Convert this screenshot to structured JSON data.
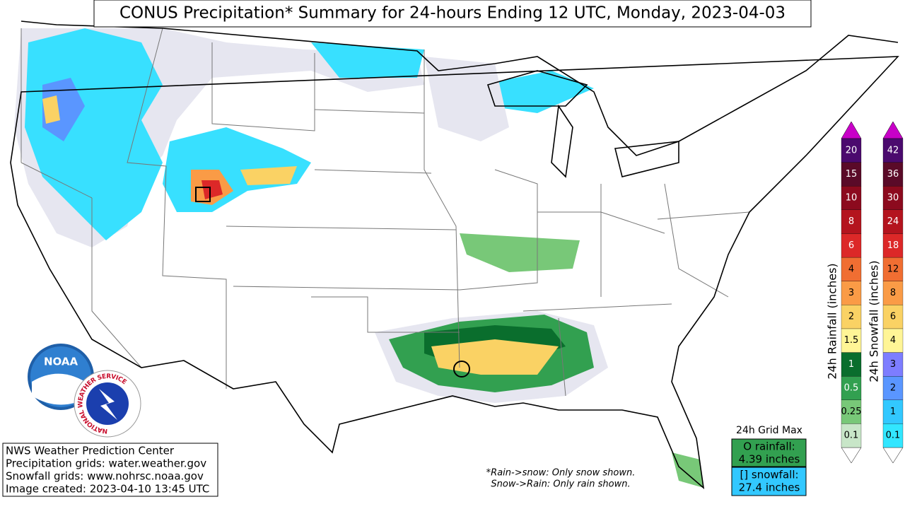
{
  "title": "CONUS Precipitation* Summary for 24-hours Ending 12 UTC, Monday, 2023-04-03",
  "info_box": {
    "lines": [
      "NWS Weather Prediction Center",
      "Precipitation grids: water.weather.gov",
      "Snowfall grids: www.nohrsc.noaa.gov",
      "Image created: 2023-04-10 13:45 UTC"
    ]
  },
  "footnote": {
    "lines": [
      "*Rain->snow: Only snow shown.",
      "Snow->Rain: Only rain shown."
    ]
  },
  "grid_max": {
    "heading": "24h Grid Max",
    "rainfall": [
      "O rainfall:",
      "4.39 inches"
    ],
    "snowfall": [
      "[] snowfall:",
      "27.4 inches"
    ]
  },
  "logos": {
    "noaa": "NOAA",
    "nws": "NATIONAL WEATHER SERVICE"
  },
  "legends": [
    {
      "label": "24h Rainfall (inches)",
      "levels": [
        {
          "value": 0.1,
          "color": "#c8e6c8"
        },
        {
          "value": 0.25,
          "color": "#78c878"
        },
        {
          "value": 0.5,
          "color": "#32a050"
        },
        {
          "value": 1,
          "color": "#0a6e2d"
        },
        {
          "value": 1.5,
          "color": "#fff596"
        },
        {
          "value": 2,
          "color": "#fad264"
        },
        {
          "value": 3,
          "color": "#fa9b46"
        },
        {
          "value": 4,
          "color": "#f06e32"
        },
        {
          "value": 6,
          "color": "#dc2828"
        },
        {
          "value": 8,
          "color": "#b4141e"
        },
        {
          "value": 10,
          "color": "#8c0a1e"
        },
        {
          "value": 15,
          "color": "#5a0a28"
        },
        {
          "value": 20,
          "color": "#4b0a6e"
        }
      ]
    },
    {
      "label": "24h Snowfall (inches)",
      "levels": [
        {
          "value": 0.1,
          "color": "#32e6ff"
        },
        {
          "value": 1,
          "color": "#32c8ff"
        },
        {
          "value": 2,
          "color": "#5a96ff"
        },
        {
          "value": 3,
          "color": "#7d7dff"
        },
        {
          "value": 4,
          "color": "#fff596"
        },
        {
          "value": 6,
          "color": "#fad264"
        },
        {
          "value": 8,
          "color": "#fa9b46"
        },
        {
          "value": 12,
          "color": "#f06e32"
        },
        {
          "value": 18,
          "color": "#dc2828"
        },
        {
          "value": 24,
          "color": "#b4141e"
        },
        {
          "value": 30,
          "color": "#8c0a1e"
        },
        {
          "value": 36,
          "color": "#5a0a28"
        },
        {
          "value": 42,
          "color": "#4b0a6e"
        }
      ]
    }
  ]
}
